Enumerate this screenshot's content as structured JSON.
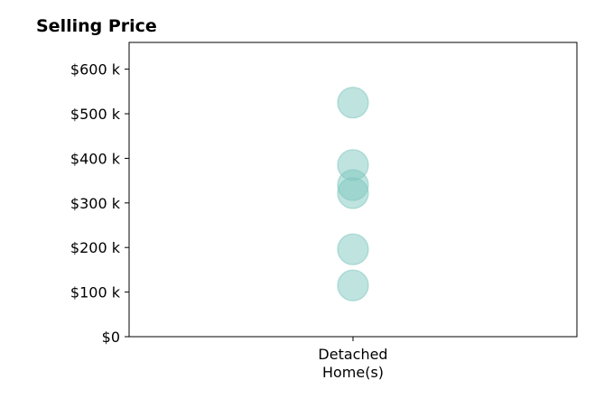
{
  "chart_data": {
    "type": "scatter",
    "title": "Selling Price",
    "xlabel": "",
    "ylabel": "",
    "categories": [
      "Detached\nHome(s)"
    ],
    "y_ticks": [
      {
        "value": 0,
        "label": "$0"
      },
      {
        "value": 100000,
        "label": "$100 k"
      },
      {
        "value": 200000,
        "label": "$200 k"
      },
      {
        "value": 300000,
        "label": "$300 k"
      },
      {
        "value": 400000,
        "label": "$400 k"
      },
      {
        "value": 500000,
        "label": "$500 k"
      },
      {
        "value": 600000,
        "label": "$600 k"
      }
    ],
    "ylim": [
      0,
      660000
    ],
    "grid": false,
    "series": [
      {
        "color": "#7fc8bf",
        "points": [
          {
            "x": "Detached\nHome(s)",
            "y": 525000
          },
          {
            "x": "Detached\nHome(s)",
            "y": 385000
          },
          {
            "x": "Detached\nHome(s)",
            "y": 340000
          },
          {
            "x": "Detached\nHome(s)",
            "y": 322000
          },
          {
            "x": "Detached\nHome(s)",
            "y": 196000
          },
          {
            "x": "Detached\nHome(s)",
            "y": 115000
          }
        ]
      }
    ]
  }
}
